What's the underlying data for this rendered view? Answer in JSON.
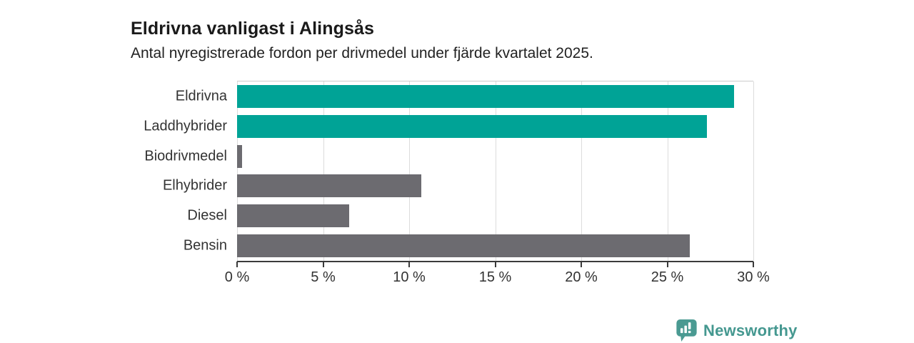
{
  "header": {
    "title": "Eldrivna vanligast i Alingsås",
    "subtitle": "Antal nyregistrerade fordon per drivmedel under fjärde kvartalet 2025."
  },
  "chart_data": {
    "type": "bar",
    "orientation": "horizontal",
    "title": "Eldrivna vanligast i Alingsås",
    "subtitle": "Antal nyregistrerade fordon per drivmedel under fjärde kvartalet 2025.",
    "categories": [
      "Eldrivna",
      "Laddhybrider",
      "Biodrivmedel",
      "Elhybrider",
      "Diesel",
      "Bensin"
    ],
    "values": [
      28.9,
      27.3,
      0.3,
      10.7,
      6.5,
      26.3
    ],
    "unit": "%",
    "bar_colors": [
      "#00a396",
      "#00a396",
      "#6c6b70",
      "#6c6b70",
      "#6c6b70",
      "#6c6b70"
    ],
    "xlabel": "",
    "ylabel": "",
    "xlim": [
      0,
      30
    ],
    "x_ticks": [
      0,
      5,
      10,
      15,
      20,
      25,
      30
    ],
    "x_tick_labels": [
      "0 %",
      "5 %",
      "10 %",
      "15 %",
      "20 %",
      "25 %",
      "30 %"
    ],
    "grid": true,
    "legend": false
  },
  "colors": {
    "teal": "#00a396",
    "gray": "#6c6b70",
    "axis": "#3a3a3a",
    "gridline": "#dcdcdc",
    "plot_top_border": "#cccccc",
    "title_text": "#1a1a1a",
    "label_text": "#333333",
    "logo": "#459890"
  },
  "footer": {
    "brand": "Newsworthy"
  }
}
